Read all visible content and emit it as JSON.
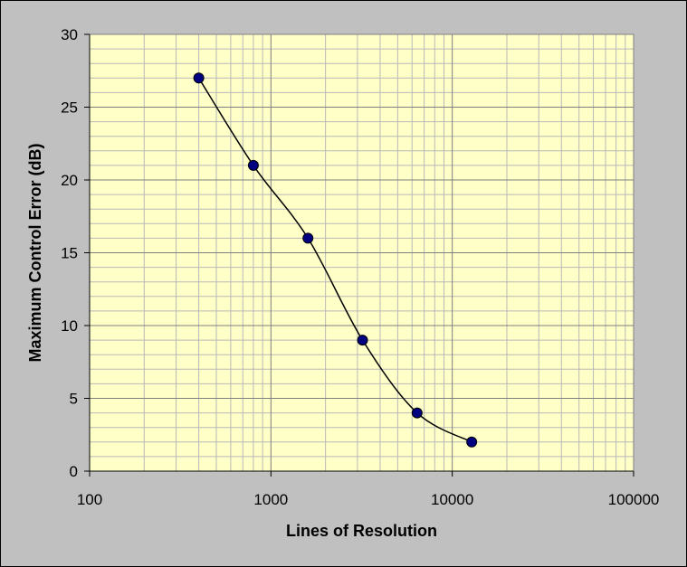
{
  "chart_data": {
    "type": "line",
    "title": "",
    "xlabel": "Lines of Resolution",
    "ylabel": "Maximum Control Error (dB)",
    "x_scale": "log",
    "xlim": [
      100,
      100000
    ],
    "ylim": [
      0,
      30
    ],
    "x_tick_labels": [
      "100",
      "1000",
      "10000",
      "100000"
    ],
    "y_tick_labels": [
      "0",
      "5",
      "10",
      "15",
      "20",
      "25",
      "30"
    ],
    "grid": true,
    "legend": "none",
    "series": [
      {
        "x": [
          400,
          800,
          1600,
          3200,
          6400,
          12800
        ],
        "y": [
          27,
          21,
          16,
          9,
          4,
          2
        ]
      }
    ],
    "colors": {
      "frame_background": "#c0c0c0",
      "plot_background": "#ffffc8",
      "gridline": "#b8b8b8",
      "line": "#000000",
      "marker_fill": "#000080",
      "marker_stroke": "#000000"
    }
  }
}
